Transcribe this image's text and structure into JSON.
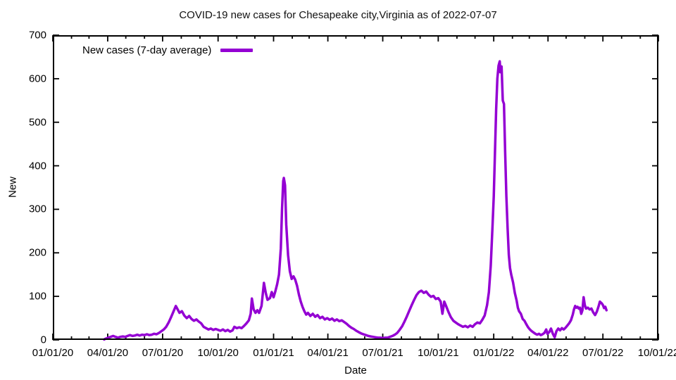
{
  "title": "COVID-19 new cases for Chesapeake city,Virginia as of 2022-07-07",
  "legend": {
    "label": "New cases (7-day average)"
  },
  "axes": {
    "x_label": "Date",
    "y_label": "New",
    "x_ticks": [
      "01/01/20",
      "04/01/20",
      "07/01/20",
      "10/01/20",
      "01/01/21",
      "04/01/21",
      "07/01/21",
      "10/01/21",
      "01/01/22",
      "04/01/22",
      "07/01/22",
      "10/01/22"
    ],
    "y_ticks": [
      "0",
      "100",
      "200",
      "300",
      "400",
      "500",
      "600",
      "700"
    ]
  },
  "colors": {
    "line": "#9400D3",
    "axis": "#000000",
    "background": "#ffffff",
    "text": "#111111"
  },
  "chart_data": {
    "type": "line",
    "title": "COVID-19 new cases for Chesapeake city,Virginia as of 2022-07-07",
    "xlabel": "Date",
    "ylabel": "New",
    "x_range": [
      "2020-01-01",
      "2022-10-01"
    ],
    "ylim": [
      0,
      700
    ],
    "grid": false,
    "legend_position": "top-left",
    "x_major_tick_interval": "3 months",
    "x_minor_tick_interval": "1 month",
    "series": [
      {
        "name": "New cases (7-day average)",
        "color": "#9400D3",
        "points": [
          [
            "2020-03-26",
            1
          ],
          [
            "2020-03-29",
            3
          ],
          [
            "2020-04-02",
            5
          ],
          [
            "2020-04-06",
            7
          ],
          [
            "2020-04-10",
            9
          ],
          [
            "2020-04-14",
            7
          ],
          [
            "2020-04-18",
            5
          ],
          [
            "2020-04-22",
            7
          ],
          [
            "2020-04-26",
            8
          ],
          [
            "2020-04-30",
            7
          ],
          [
            "2020-05-04",
            9
          ],
          [
            "2020-05-08",
            11
          ],
          [
            "2020-05-12",
            9
          ],
          [
            "2020-05-16",
            10
          ],
          [
            "2020-05-20",
            12
          ],
          [
            "2020-05-24",
            10
          ],
          [
            "2020-05-28",
            12
          ],
          [
            "2020-06-01",
            11
          ],
          [
            "2020-06-05",
            13
          ],
          [
            "2020-06-09",
            11
          ],
          [
            "2020-06-13",
            12
          ],
          [
            "2020-06-17",
            14
          ],
          [
            "2020-06-21",
            13
          ],
          [
            "2020-06-25",
            16
          ],
          [
            "2020-06-29",
            20
          ],
          [
            "2020-07-03",
            24
          ],
          [
            "2020-07-07",
            30
          ],
          [
            "2020-07-11",
            40
          ],
          [
            "2020-07-15",
            52
          ],
          [
            "2020-07-19",
            65
          ],
          [
            "2020-07-23",
            78
          ],
          [
            "2020-07-26",
            70
          ],
          [
            "2020-07-29",
            62
          ],
          [
            "2020-08-02",
            66
          ],
          [
            "2020-08-06",
            56
          ],
          [
            "2020-08-10",
            50
          ],
          [
            "2020-08-14",
            55
          ],
          [
            "2020-08-18",
            48
          ],
          [
            "2020-08-22",
            44
          ],
          [
            "2020-08-26",
            47
          ],
          [
            "2020-08-30",
            42
          ],
          [
            "2020-09-03",
            38
          ],
          [
            "2020-09-07",
            30
          ],
          [
            "2020-09-11",
            27
          ],
          [
            "2020-09-15",
            24
          ],
          [
            "2020-09-19",
            26
          ],
          [
            "2020-09-23",
            23
          ],
          [
            "2020-09-27",
            25
          ],
          [
            "2020-10-01",
            23
          ],
          [
            "2020-10-05",
            21
          ],
          [
            "2020-10-09",
            24
          ],
          [
            "2020-10-13",
            20
          ],
          [
            "2020-10-17",
            23
          ],
          [
            "2020-10-21",
            19
          ],
          [
            "2020-10-25",
            22
          ],
          [
            "2020-10-28",
            30
          ],
          [
            "2020-11-01",
            27
          ],
          [
            "2020-11-05",
            29
          ],
          [
            "2020-11-09",
            27
          ],
          [
            "2020-11-13",
            32
          ],
          [
            "2020-11-17",
            38
          ],
          [
            "2020-11-21",
            45
          ],
          [
            "2020-11-24",
            60
          ],
          [
            "2020-11-26",
            95
          ],
          [
            "2020-11-29",
            70
          ],
          [
            "2020-12-02",
            62
          ],
          [
            "2020-12-05",
            68
          ],
          [
            "2020-12-08",
            62
          ],
          [
            "2020-12-12",
            78
          ],
          [
            "2020-12-16",
            131
          ],
          [
            "2020-12-19",
            108
          ],
          [
            "2020-12-22",
            92
          ],
          [
            "2020-12-26",
            96
          ],
          [
            "2020-12-29",
            110
          ],
          [
            "2021-01-01",
            98
          ],
          [
            "2021-01-04",
            112
          ],
          [
            "2021-01-07",
            128
          ],
          [
            "2021-01-10",
            150
          ],
          [
            "2021-01-13",
            210
          ],
          [
            "2021-01-15",
            300
          ],
          [
            "2021-01-17",
            365
          ],
          [
            "2021-01-18",
            372
          ],
          [
            "2021-01-20",
            355
          ],
          [
            "2021-01-22",
            265
          ],
          [
            "2021-01-25",
            195
          ],
          [
            "2021-01-28",
            158
          ],
          [
            "2021-01-31",
            140
          ],
          [
            "2021-02-03",
            146
          ],
          [
            "2021-02-06",
            138
          ],
          [
            "2021-02-09",
            124
          ],
          [
            "2021-02-12",
            104
          ],
          [
            "2021-02-15",
            88
          ],
          [
            "2021-02-18",
            76
          ],
          [
            "2021-02-21",
            66
          ],
          [
            "2021-02-24",
            58
          ],
          [
            "2021-02-27",
            62
          ],
          [
            "2021-03-03",
            55
          ],
          [
            "2021-03-07",
            60
          ],
          [
            "2021-03-11",
            53
          ],
          [
            "2021-03-15",
            57
          ],
          [
            "2021-03-19",
            50
          ],
          [
            "2021-03-23",
            53
          ],
          [
            "2021-03-27",
            47
          ],
          [
            "2021-03-31",
            50
          ],
          [
            "2021-04-04",
            46
          ],
          [
            "2021-04-08",
            49
          ],
          [
            "2021-04-12",
            44
          ],
          [
            "2021-04-16",
            47
          ],
          [
            "2021-04-20",
            43
          ],
          [
            "2021-04-24",
            45
          ],
          [
            "2021-04-28",
            41
          ],
          [
            "2021-05-02",
            37
          ],
          [
            "2021-05-06",
            32
          ],
          [
            "2021-05-10",
            28
          ],
          [
            "2021-05-14",
            25
          ],
          [
            "2021-05-18",
            21
          ],
          [
            "2021-05-22",
            18
          ],
          [
            "2021-05-26",
            15
          ],
          [
            "2021-05-30",
            13
          ],
          [
            "2021-06-03",
            11
          ],
          [
            "2021-06-07",
            9
          ],
          [
            "2021-06-11",
            8
          ],
          [
            "2021-06-15",
            7
          ],
          [
            "2021-06-19",
            6
          ],
          [
            "2021-06-23",
            5
          ],
          [
            "2021-06-27",
            5
          ],
          [
            "2021-07-01",
            4
          ],
          [
            "2021-07-05",
            5
          ],
          [
            "2021-07-09",
            5
          ],
          [
            "2021-07-13",
            7
          ],
          [
            "2021-07-17",
            9
          ],
          [
            "2021-07-21",
            12
          ],
          [
            "2021-07-25",
            16
          ],
          [
            "2021-07-29",
            23
          ],
          [
            "2021-08-02",
            31
          ],
          [
            "2021-08-06",
            42
          ],
          [
            "2021-08-10",
            54
          ],
          [
            "2021-08-14",
            67
          ],
          [
            "2021-08-18",
            80
          ],
          [
            "2021-08-22",
            92
          ],
          [
            "2021-08-26",
            103
          ],
          [
            "2021-08-30",
            110
          ],
          [
            "2021-09-03",
            113
          ],
          [
            "2021-09-07",
            108
          ],
          [
            "2021-09-11",
            111
          ],
          [
            "2021-09-15",
            104
          ],
          [
            "2021-09-19",
            99
          ],
          [
            "2021-09-23",
            101
          ],
          [
            "2021-09-27",
            94
          ],
          [
            "2021-10-01",
            96
          ],
          [
            "2021-10-05",
            88
          ],
          [
            "2021-10-08",
            60
          ],
          [
            "2021-10-11",
            88
          ],
          [
            "2021-10-14",
            78
          ],
          [
            "2021-10-18",
            64
          ],
          [
            "2021-10-22",
            52
          ],
          [
            "2021-10-26",
            44
          ],
          [
            "2021-10-30",
            40
          ],
          [
            "2021-11-03",
            36
          ],
          [
            "2021-11-07",
            33
          ],
          [
            "2021-11-11",
            30
          ],
          [
            "2021-11-15",
            32
          ],
          [
            "2021-11-19",
            29
          ],
          [
            "2021-11-23",
            33
          ],
          [
            "2021-11-27",
            30
          ],
          [
            "2021-12-01",
            36
          ],
          [
            "2021-12-05",
            40
          ],
          [
            "2021-12-09",
            38
          ],
          [
            "2021-12-13",
            46
          ],
          [
            "2021-12-17",
            56
          ],
          [
            "2021-12-21",
            80
          ],
          [
            "2021-12-24",
            110
          ],
          [
            "2021-12-27",
            170
          ],
          [
            "2021-12-30",
            260
          ],
          [
            "2022-01-01",
            330
          ],
          [
            "2022-01-03",
            430
          ],
          [
            "2022-01-05",
            530
          ],
          [
            "2022-01-07",
            600
          ],
          [
            "2022-01-09",
            630
          ],
          [
            "2022-01-11",
            640
          ],
          [
            "2022-01-12",
            615
          ],
          [
            "2022-01-14",
            628
          ],
          [
            "2022-01-16",
            550
          ],
          [
            "2022-01-18",
            542
          ],
          [
            "2022-01-20",
            430
          ],
          [
            "2022-01-22",
            330
          ],
          [
            "2022-01-24",
            255
          ],
          [
            "2022-01-26",
            195
          ],
          [
            "2022-01-28",
            165
          ],
          [
            "2022-01-30",
            150
          ],
          [
            "2022-02-02",
            132
          ],
          [
            "2022-02-05",
            108
          ],
          [
            "2022-02-08",
            90
          ],
          [
            "2022-02-10",
            74
          ],
          [
            "2022-02-12",
            66
          ],
          [
            "2022-02-15",
            60
          ],
          [
            "2022-02-18",
            48
          ],
          [
            "2022-02-21",
            44
          ],
          [
            "2022-02-24",
            36
          ],
          [
            "2022-02-27",
            29
          ],
          [
            "2022-03-02",
            24
          ],
          [
            "2022-03-05",
            20
          ],
          [
            "2022-03-08",
            17
          ],
          [
            "2022-03-11",
            14
          ],
          [
            "2022-03-14",
            12
          ],
          [
            "2022-03-17",
            14
          ],
          [
            "2022-03-20",
            11
          ],
          [
            "2022-03-23",
            13
          ],
          [
            "2022-03-26",
            16
          ],
          [
            "2022-03-29",
            24
          ],
          [
            "2022-03-31",
            14
          ],
          [
            "2022-04-03",
            18
          ],
          [
            "2022-04-06",
            26
          ],
          [
            "2022-04-09",
            14
          ],
          [
            "2022-04-12",
            6
          ],
          [
            "2022-04-15",
            20
          ],
          [
            "2022-04-18",
            26
          ],
          [
            "2022-04-21",
            22
          ],
          [
            "2022-04-24",
            27
          ],
          [
            "2022-04-27",
            24
          ],
          [
            "2022-04-30",
            28
          ],
          [
            "2022-05-03",
            33
          ],
          [
            "2022-05-06",
            38
          ],
          [
            "2022-05-09",
            45
          ],
          [
            "2022-05-12",
            58
          ],
          [
            "2022-05-14",
            70
          ],
          [
            "2022-05-16",
            78
          ],
          [
            "2022-05-18",
            74
          ],
          [
            "2022-05-20",
            76
          ],
          [
            "2022-05-22",
            72
          ],
          [
            "2022-05-24",
            74
          ],
          [
            "2022-05-26",
            60
          ],
          [
            "2022-05-28",
            68
          ],
          [
            "2022-05-30",
            98
          ],
          [
            "2022-06-01",
            80
          ],
          [
            "2022-06-03",
            72
          ],
          [
            "2022-06-06",
            74
          ],
          [
            "2022-06-09",
            70
          ],
          [
            "2022-06-12",
            72
          ],
          [
            "2022-06-15",
            63
          ],
          [
            "2022-06-18",
            57
          ],
          [
            "2022-06-21",
            65
          ],
          [
            "2022-06-24",
            78
          ],
          [
            "2022-06-26",
            88
          ],
          [
            "2022-06-29",
            84
          ],
          [
            "2022-07-01",
            80
          ],
          [
            "2022-07-03",
            73
          ],
          [
            "2022-07-05",
            76
          ],
          [
            "2022-07-07",
            68
          ]
        ]
      }
    ]
  }
}
